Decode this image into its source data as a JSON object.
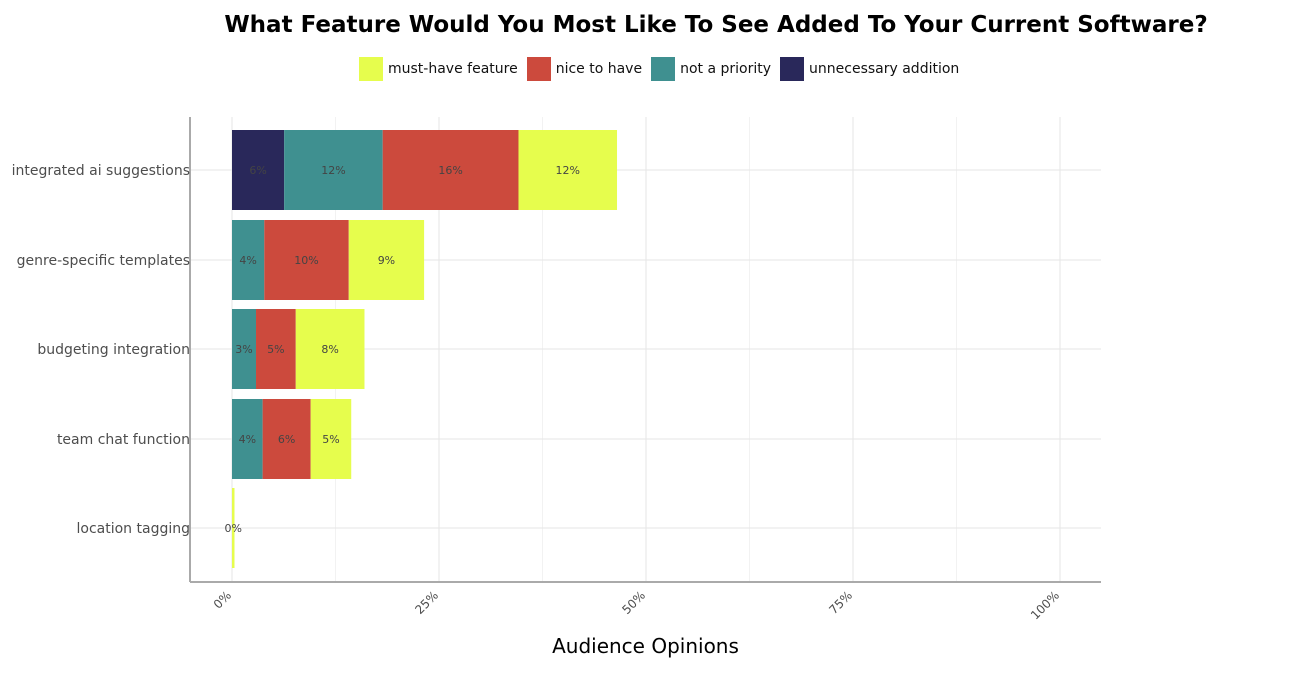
{
  "chart_data": {
    "type": "bar",
    "orientation": "horizontal",
    "stacked": true,
    "title": "What Feature Would You Most Like To See Added To Your Current Software?",
    "xlabel": "Audience Opinions",
    "ylabel": "",
    "xlim": [
      0,
      100
    ],
    "x_ticks": [
      "0%",
      "25%",
      "50%",
      "75%",
      "100%"
    ],
    "grid": true,
    "legend_position": "top",
    "categories": [
      "integrated ai suggestions",
      "genre-specific templates",
      "budgeting integration",
      "team chat function",
      "location tagging"
    ],
    "series": [
      {
        "name": "unnecessary addition",
        "color": "#29285a",
        "values": [
          6.3,
          0,
          0,
          0,
          0
        ],
        "labels": [
          "6%",
          "",
          "",
          "",
          ""
        ]
      },
      {
        "name": "not a priority",
        "color": "#3f9090",
        "values": [
          11.9,
          3.9,
          2.9,
          3.7,
          0
        ],
        "labels": [
          "12%",
          "4%",
          "3%",
          "4%",
          ""
        ]
      },
      {
        "name": "nice to have",
        "color": "#cc4a3d",
        "values": [
          16.4,
          10.2,
          4.8,
          5.8,
          0
        ],
        "labels": [
          "16%",
          "10%",
          "5%",
          "6%",
          ""
        ]
      },
      {
        "name": "must-have feature",
        "color": "#e6fd4d",
        "values": [
          11.9,
          9.1,
          8.3,
          4.9,
          0.3
        ],
        "labels": [
          "12%",
          "9%",
          "8%",
          "5%",
          "0%"
        ]
      }
    ],
    "legend_order": [
      "must-have feature",
      "nice to have",
      "not a priority",
      "unnecessary addition"
    ]
  }
}
